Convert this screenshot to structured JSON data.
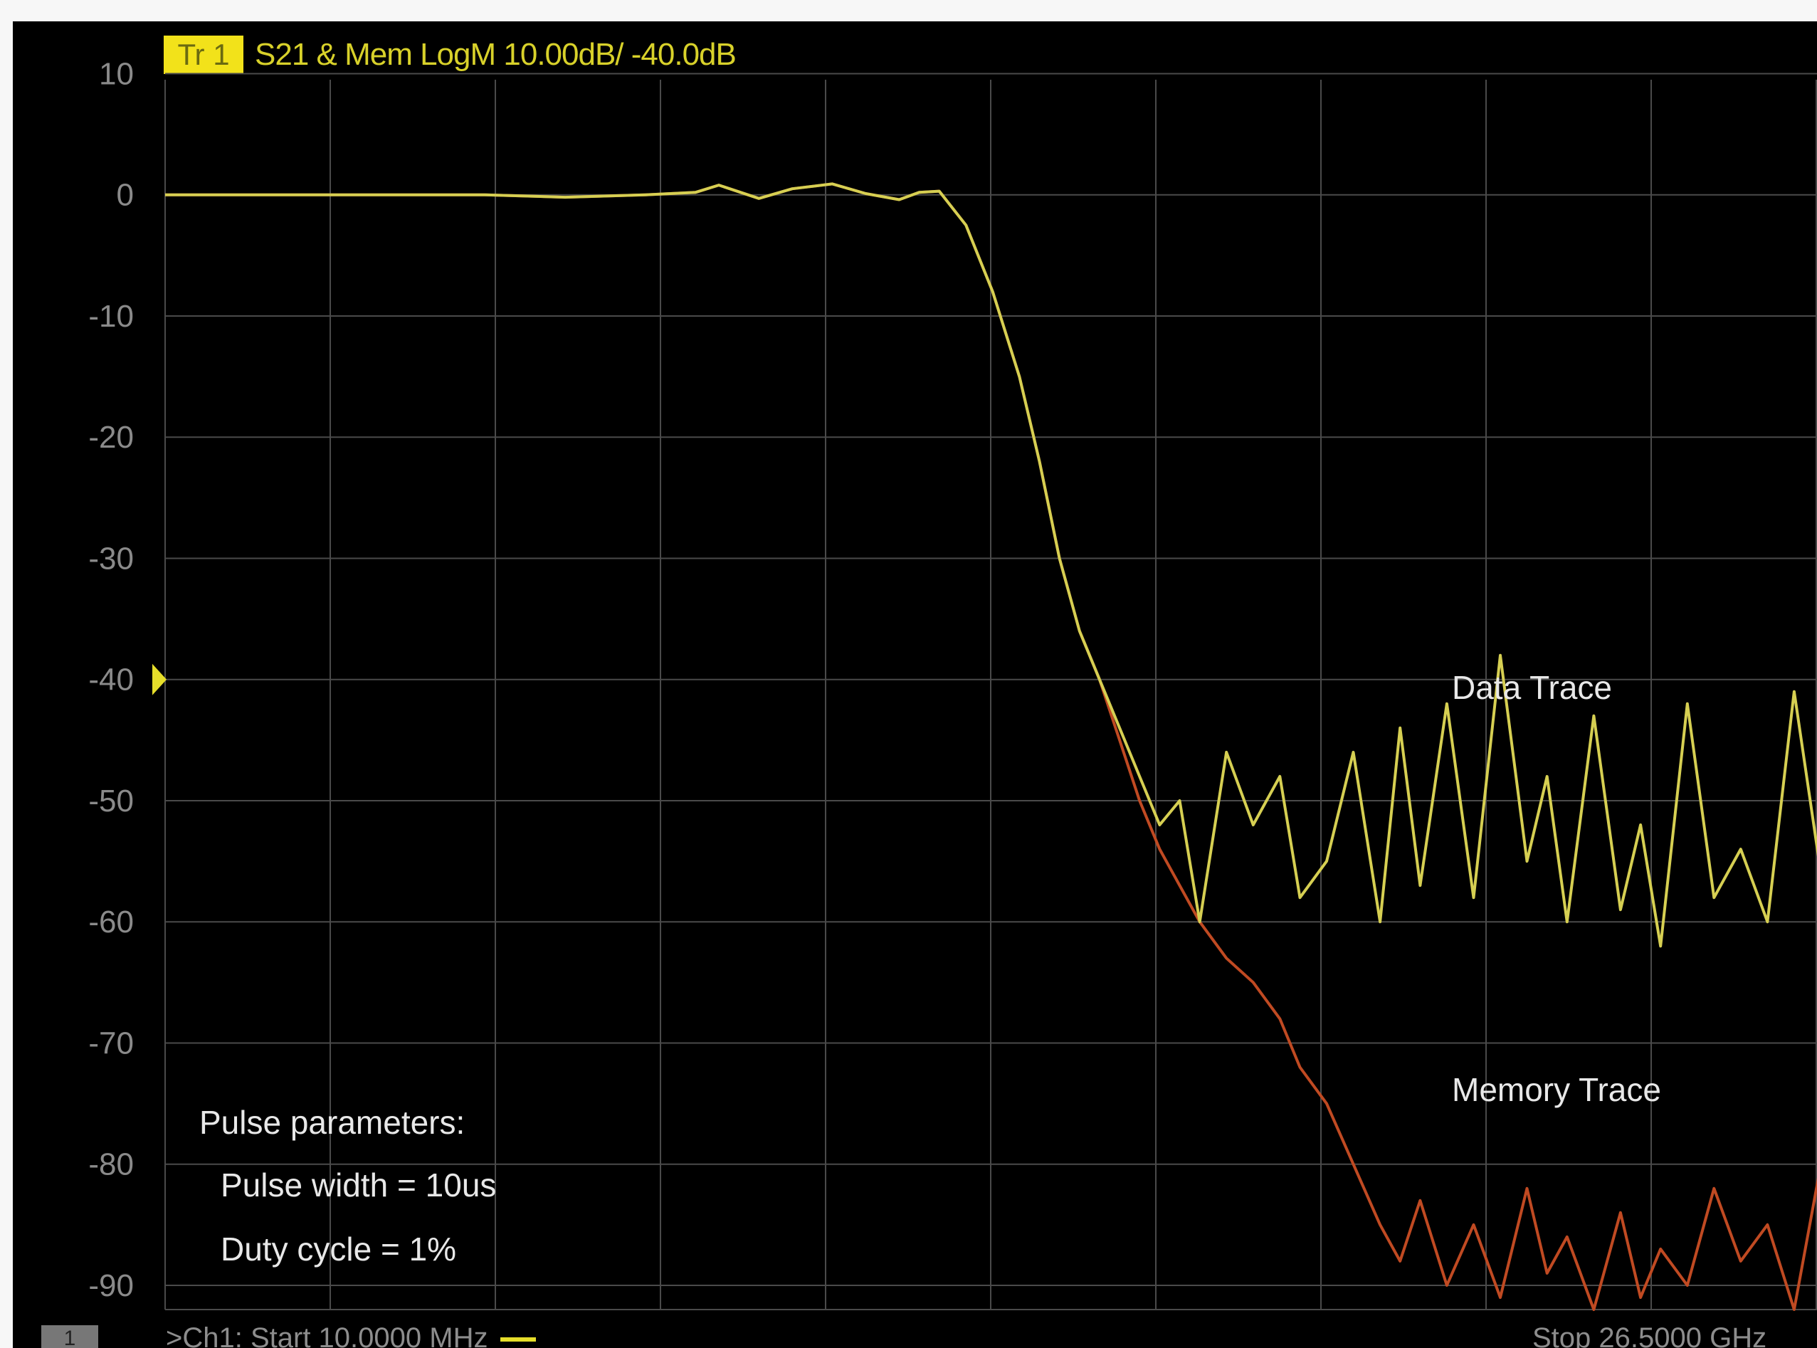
{
  "header": {
    "trace_badge": "Tr 1",
    "trace_title": "S21 & Mem LogM 10.00dB/ -40.0dB"
  },
  "colors": {
    "background": "#000000",
    "grid": "#4a4a4a",
    "data_trace": "#d6cf52",
    "memory_trace": "#c04a22",
    "badge": "#f2e21a"
  },
  "chart_data": {
    "type": "line",
    "title": "S21 & Mem LogM 10.00dB/ -40.0dB",
    "xlabel": "",
    "ylabel": "",
    "xlim": [
      0.01,
      26.5
    ],
    "ylim": [
      -92,
      10
    ],
    "x_unit": "GHz",
    "yticks": [
      10,
      0,
      -10,
      -20,
      -30,
      -40,
      -50,
      -60,
      -70,
      -80,
      -90
    ],
    "ytick_labels": [
      "10",
      "0",
      "-10",
      "-20",
      "-30",
      "-40",
      "-50",
      "-60",
      "-70",
      "-80",
      "-90"
    ],
    "reference_level": -40,
    "grid": true,
    "x": [
      0.01,
      1.2,
      2.4,
      3.6,
      4.8,
      6.0,
      7.2,
      7.95,
      8.3,
      8.9,
      9.4,
      10.0,
      10.5,
      11.0,
      11.3,
      11.6,
      12.0,
      12.4,
      12.8,
      13.1,
      13.4,
      13.7,
      14.0,
      14.3,
      14.6,
      14.9,
      15.2,
      15.5,
      15.9,
      16.3,
      16.7,
      17.0,
      17.4,
      17.8,
      18.2,
      18.5,
      18.8,
      19.2,
      19.6,
      20.0,
      20.4,
      20.7,
      21.0,
      21.4,
      21.8,
      22.1,
      22.4,
      22.8,
      23.2,
      23.6,
      24.0,
      24.4,
      24.8,
      25.2,
      25.6,
      26.0,
      26.5
    ],
    "series": [
      {
        "name": "Data Trace",
        "values": [
          0,
          0,
          0,
          0,
          0,
          -0.2,
          0,
          0.2,
          0.8,
          -0.3,
          0.5,
          0.9,
          0.1,
          -0.4,
          0.2,
          0.3,
          -2.5,
          -8,
          -15,
          -22,
          -30,
          -36,
          -40,
          -44,
          -48,
          -52,
          -50,
          -60,
          -46,
          -52,
          -48,
          -58,
          -55,
          -46,
          -60,
          -44,
          -57,
          -42,
          -58,
          -38,
          -55,
          -48,
          -60,
          -43,
          -59,
          -52,
          -62,
          -42,
          -58,
          -54,
          -60,
          -41,
          -56,
          -52,
          -48,
          -64,
          -42
        ]
      },
      {
        "name": "Memory Trace",
        "values": [
          0,
          0,
          0,
          0,
          0,
          -0.2,
          0,
          0.2,
          0.8,
          -0.3,
          0.5,
          0.9,
          0.1,
          -0.4,
          0.2,
          0.3,
          -2.5,
          -8,
          -15,
          -22,
          -30,
          -36,
          -40,
          -45,
          -50,
          -54,
          -57,
          -60,
          -63,
          -65,
          -68,
          -72,
          -75,
          -80,
          -85,
          -88,
          -83,
          -90,
          -85,
          -91,
          -82,
          -89,
          -86,
          -92,
          -84,
          -91,
          -87,
          -90,
          -82,
          -88,
          -85,
          -92,
          -80,
          -88,
          -83,
          -90,
          -79
        ]
      }
    ],
    "annotations": {
      "data_trace_label": "Data Trace",
      "memory_trace_label": "Memory Trace",
      "pulse_title": "Pulse parameters:",
      "pulse_width": "Pulse width = 10us",
      "duty_cycle": "Duty cycle = 1%"
    }
  },
  "footer": {
    "channel_box": "1",
    "start_label": ">Ch1: Start 10.0000 MHz",
    "stop_label": "Stop 26.5000 GHz"
  }
}
